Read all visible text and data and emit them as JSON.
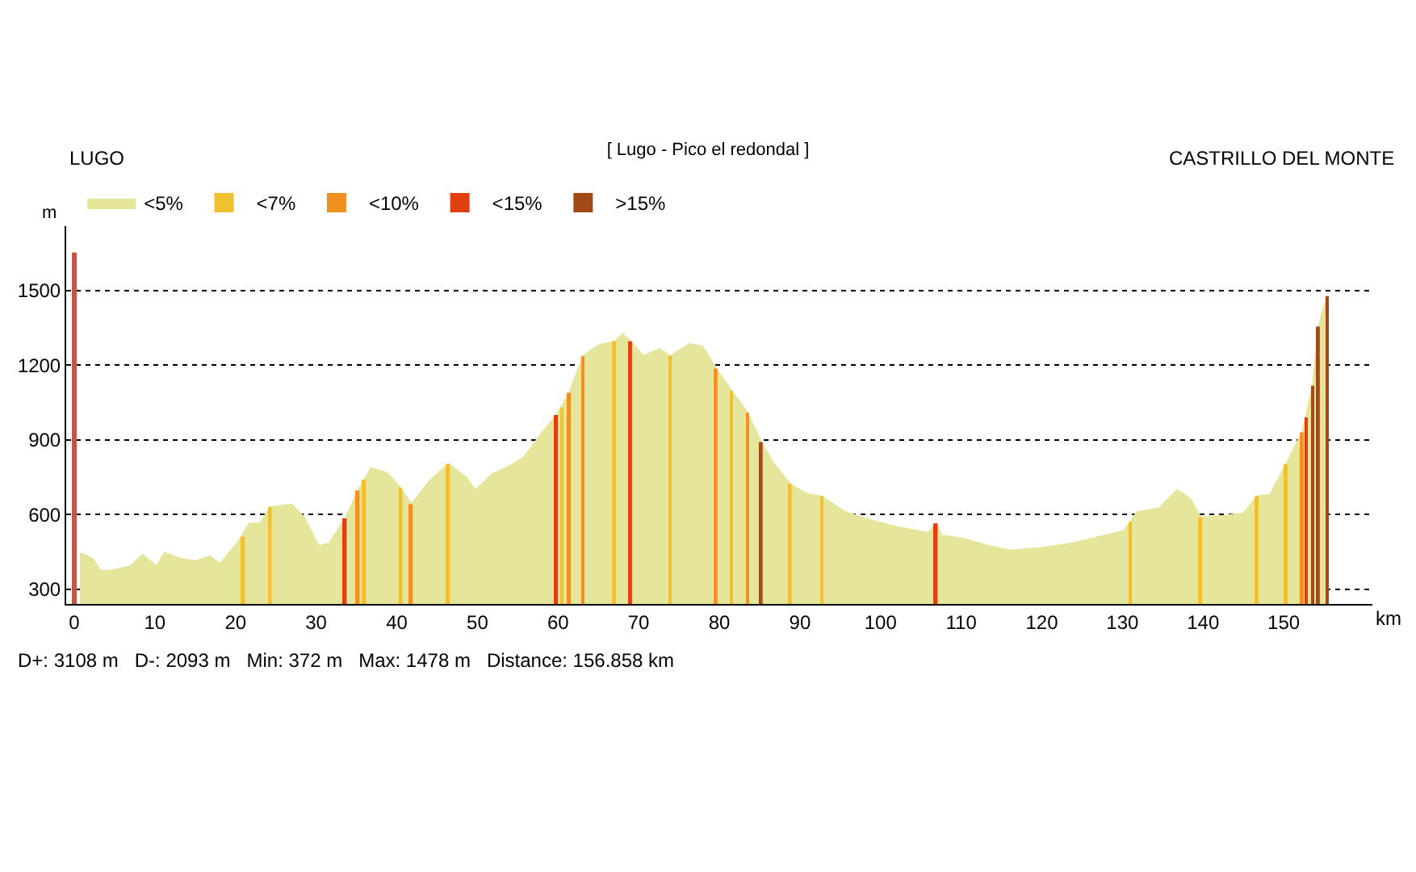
{
  "chart_data": {
    "type": "area",
    "title": "[ Lugo - Pico el redondal ]",
    "xlabel": "km",
    "ylabel": "m",
    "annotations": [
      "LUGO",
      "CASTRILLO DEL MONTE",
      "D+: 3108 m   D-: 2093 m   Min: 372 m   Max: 1478 m   Distance: 156.858 km"
    ],
    "xlim": [
      -1,
      161
    ],
    "ylim": [
      240,
      1760
    ],
    "xticks": [
      0,
      10,
      20,
      30,
      40,
      50,
      60,
      70,
      80,
      90,
      100,
      110,
      120,
      130,
      140,
      150
    ],
    "yticks": [
      300,
      600,
      900,
      1200,
      1500
    ],
    "grid": "y",
    "legend": "top left",
    "ref_lines": [
      {
        "axis": "x",
        "value": 0,
        "color": "#d05040"
      }
    ],
    "series": [
      {
        "name": "<5%",
        "color": "#e5e59b",
        "x": [
          0.7,
          2.3,
          3.3,
          4.6,
          6.9,
          8.5,
          10.2,
          11.2,
          13.2,
          15.1,
          16.8,
          18.1,
          20.4,
          21.7,
          23,
          24.3,
          27,
          28.6,
          30.3,
          31.6,
          33.6,
          35.2,
          36.8,
          38.8,
          40.5,
          41.8,
          44.1,
          46.4,
          48.7,
          49.7,
          51.8,
          53.8,
          55.8,
          57.8,
          59.8,
          61.4,
          63.1,
          65,
          67,
          68,
          69,
          70.6,
          72.6,
          73.9,
          76.3,
          77.9,
          79.6,
          81.5,
          83.5,
          85.2,
          86.8,
          88.8,
          90.8,
          92.7,
          95.4,
          98,
          101.3,
          105.9,
          106.9,
          107.6,
          110,
          113.3,
          116,
          119.9,
          123.9,
          127.8,
          130.2,
          131.8,
          134.5,
          136.8,
          138.4,
          139.7,
          142.4,
          145,
          146.7,
          148.3,
          150.3,
          152.3,
          153.6,
          154.3,
          155.4
        ],
        "values": [
          446,
          422,
          372,
          375,
          391,
          438,
          391,
          446,
          422,
          412,
          432,
          401,
          493,
          564,
          564,
          629,
          641,
          584,
          473,
          483,
          584,
          696,
          787,
          767,
          706,
          641,
          736,
          803,
          747,
          696,
          762,
          792,
          831,
          920,
          1000,
          1089,
          1237,
          1280,
          1296,
          1326,
          1296,
          1237,
          1267,
          1237,
          1286,
          1276,
          1187,
          1098,
          1009,
          891,
          802,
          723,
          683,
          673,
          614,
          584,
          555,
          525,
          564,
          515,
          505,
          475,
          456,
          465,
          485,
          515,
          535,
          610,
          624,
          699,
          663,
          588,
          594,
          604,
          673,
          679,
          802,
          930,
          1118,
          1356,
          1478
        ]
      },
      {
        "name": "<7%",
        "color": "#f0c030",
        "type": "bar",
        "x": [
          21,
          24.3,
          36,
          40.5,
          46.4,
          60.5,
          67,
          73.9,
          81.5,
          88.8,
          92.7,
          131,
          139.7,
          146.7,
          150.3
        ],
        "values": [
          510,
          629,
          740,
          706,
          803,
          1030,
          1296,
          1237,
          1098,
          723,
          673,
          570,
          588,
          673,
          802
        ]
      },
      {
        "name": "<10%",
        "color": "#f09020",
        "type": "bar",
        "x": [
          35.2,
          41.8,
          61.4,
          63.1,
          79.6,
          83.5,
          152.3
        ],
        "values": [
          696,
          641,
          1089,
          1237,
          1187,
          1009,
          930
        ]
      },
      {
        "name": "<15%",
        "color": "#e04010",
        "type": "bar",
        "x": [
          33.6,
          59.8,
          69,
          106.9,
          152.8
        ],
        "values": [
          584,
          1000,
          1296,
          564,
          990
        ]
      },
      {
        "name": ">15%",
        "color": "#a04a1a",
        "type": "bar",
        "x": [
          85.2,
          153.6,
          154.3,
          155.4
        ],
        "values": [
          891,
          1118,
          1356,
          1478
        ]
      }
    ]
  }
}
